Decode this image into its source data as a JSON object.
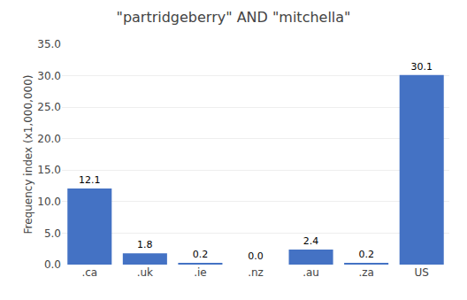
{
  "chart_data": {
    "type": "bar",
    "title": "\"partridgeberry\" AND \"mitchella\"",
    "ylabel": "Frequency index (x1,000,000)",
    "categories": [
      ".ca",
      ".uk",
      ".ie",
      ".nz",
      ".au",
      ".za",
      "US"
    ],
    "values": [
      12.1,
      1.8,
      0.2,
      0.0,
      2.4,
      0.2,
      30.1
    ],
    "value_labels": [
      "12.1",
      "1.8",
      "0.2",
      "0.0",
      "2.4",
      "0.2",
      "30.1"
    ],
    "data_labels": true,
    "color": "#4472C4",
    "ylim": [
      0,
      35
    ],
    "yticks": [
      {
        "value": 0,
        "label": "0.0"
      },
      {
        "value": 5,
        "label": "5.0"
      },
      {
        "value": 10,
        "label": "10.0"
      },
      {
        "value": 15,
        "label": "15.0"
      },
      {
        "value": 20,
        "label": "20.0"
      },
      {
        "value": 25,
        "label": "25.0"
      },
      {
        "value": 30,
        "label": "30.0"
      },
      {
        "value": 35,
        "label": "35.0"
      }
    ],
    "grid": true
  }
}
